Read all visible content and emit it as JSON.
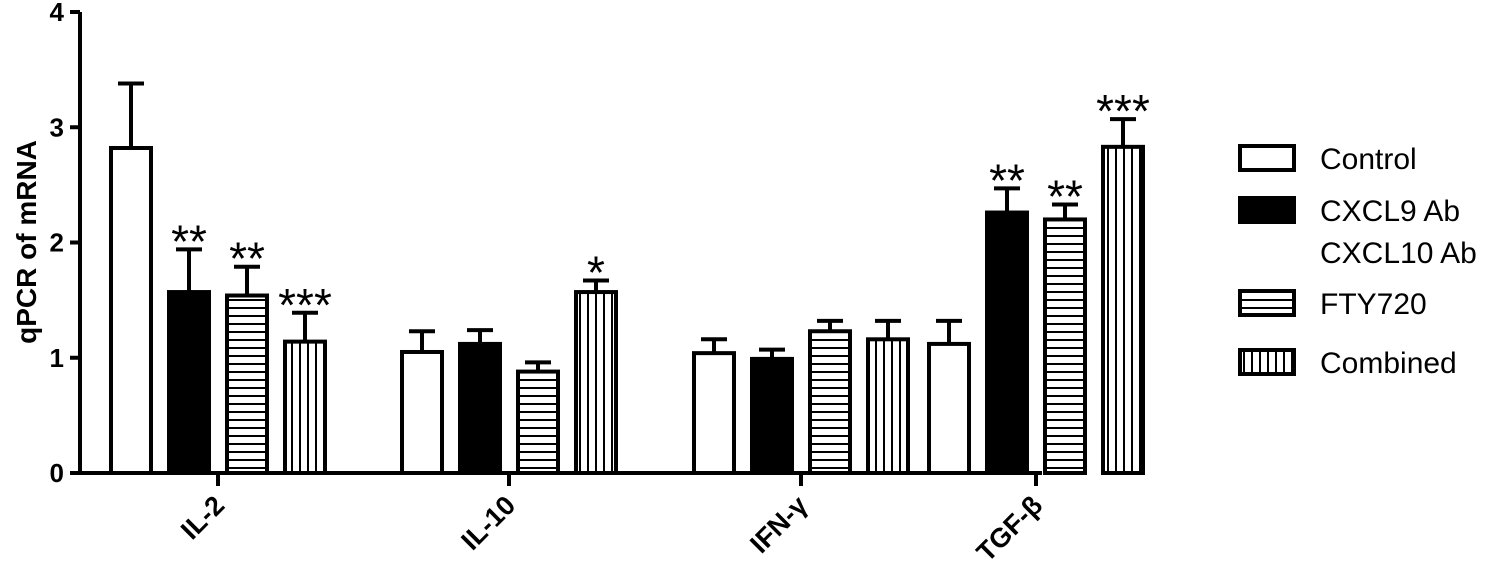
{
  "chart_data": {
    "type": "bar",
    "ylabel": "qPCR of mRNA",
    "ylim": [
      0,
      4
    ],
    "yticks": [
      "0",
      "1",
      "2",
      "3",
      "4"
    ],
    "categories": [
      "IL-2",
      "IL-10",
      "IFN-γ",
      "TGF-β"
    ],
    "series": [
      {
        "name": "Control",
        "pattern": "open",
        "values": [
          2.82,
          1.05,
          1.04,
          1.12
        ],
        "errors": [
          0.56,
          0.18,
          0.12,
          0.2
        ],
        "significance": [
          "",
          "",
          "",
          ""
        ]
      },
      {
        "name": "CXCL9 Ab\nCXCL10 Ab",
        "pattern": "solid",
        "values": [
          1.57,
          1.12,
          0.99,
          2.26
        ],
        "errors": [
          0.37,
          0.12,
          0.08,
          0.21
        ],
        "significance": [
          "**",
          "",
          "",
          "**"
        ]
      },
      {
        "name": "FTY720",
        "pattern": "horizontal-lines",
        "values": [
          1.54,
          0.88,
          1.23,
          2.2
        ],
        "errors": [
          0.25,
          0.08,
          0.09,
          0.13
        ],
        "significance": [
          "**",
          "",
          "",
          "**"
        ]
      },
      {
        "name": "Combined",
        "pattern": "vertical-lines",
        "values": [
          1.14,
          1.57,
          1.16,
          2.83
        ],
        "errors": [
          0.25,
          0.1,
          0.16,
          0.24
        ],
        "significance": [
          "***",
          "*",
          "",
          "***"
        ]
      }
    ],
    "legend_position": "right",
    "grid": false
  },
  "colors": {
    "ink": "#000000",
    "open_fill": "#ffffff"
  }
}
